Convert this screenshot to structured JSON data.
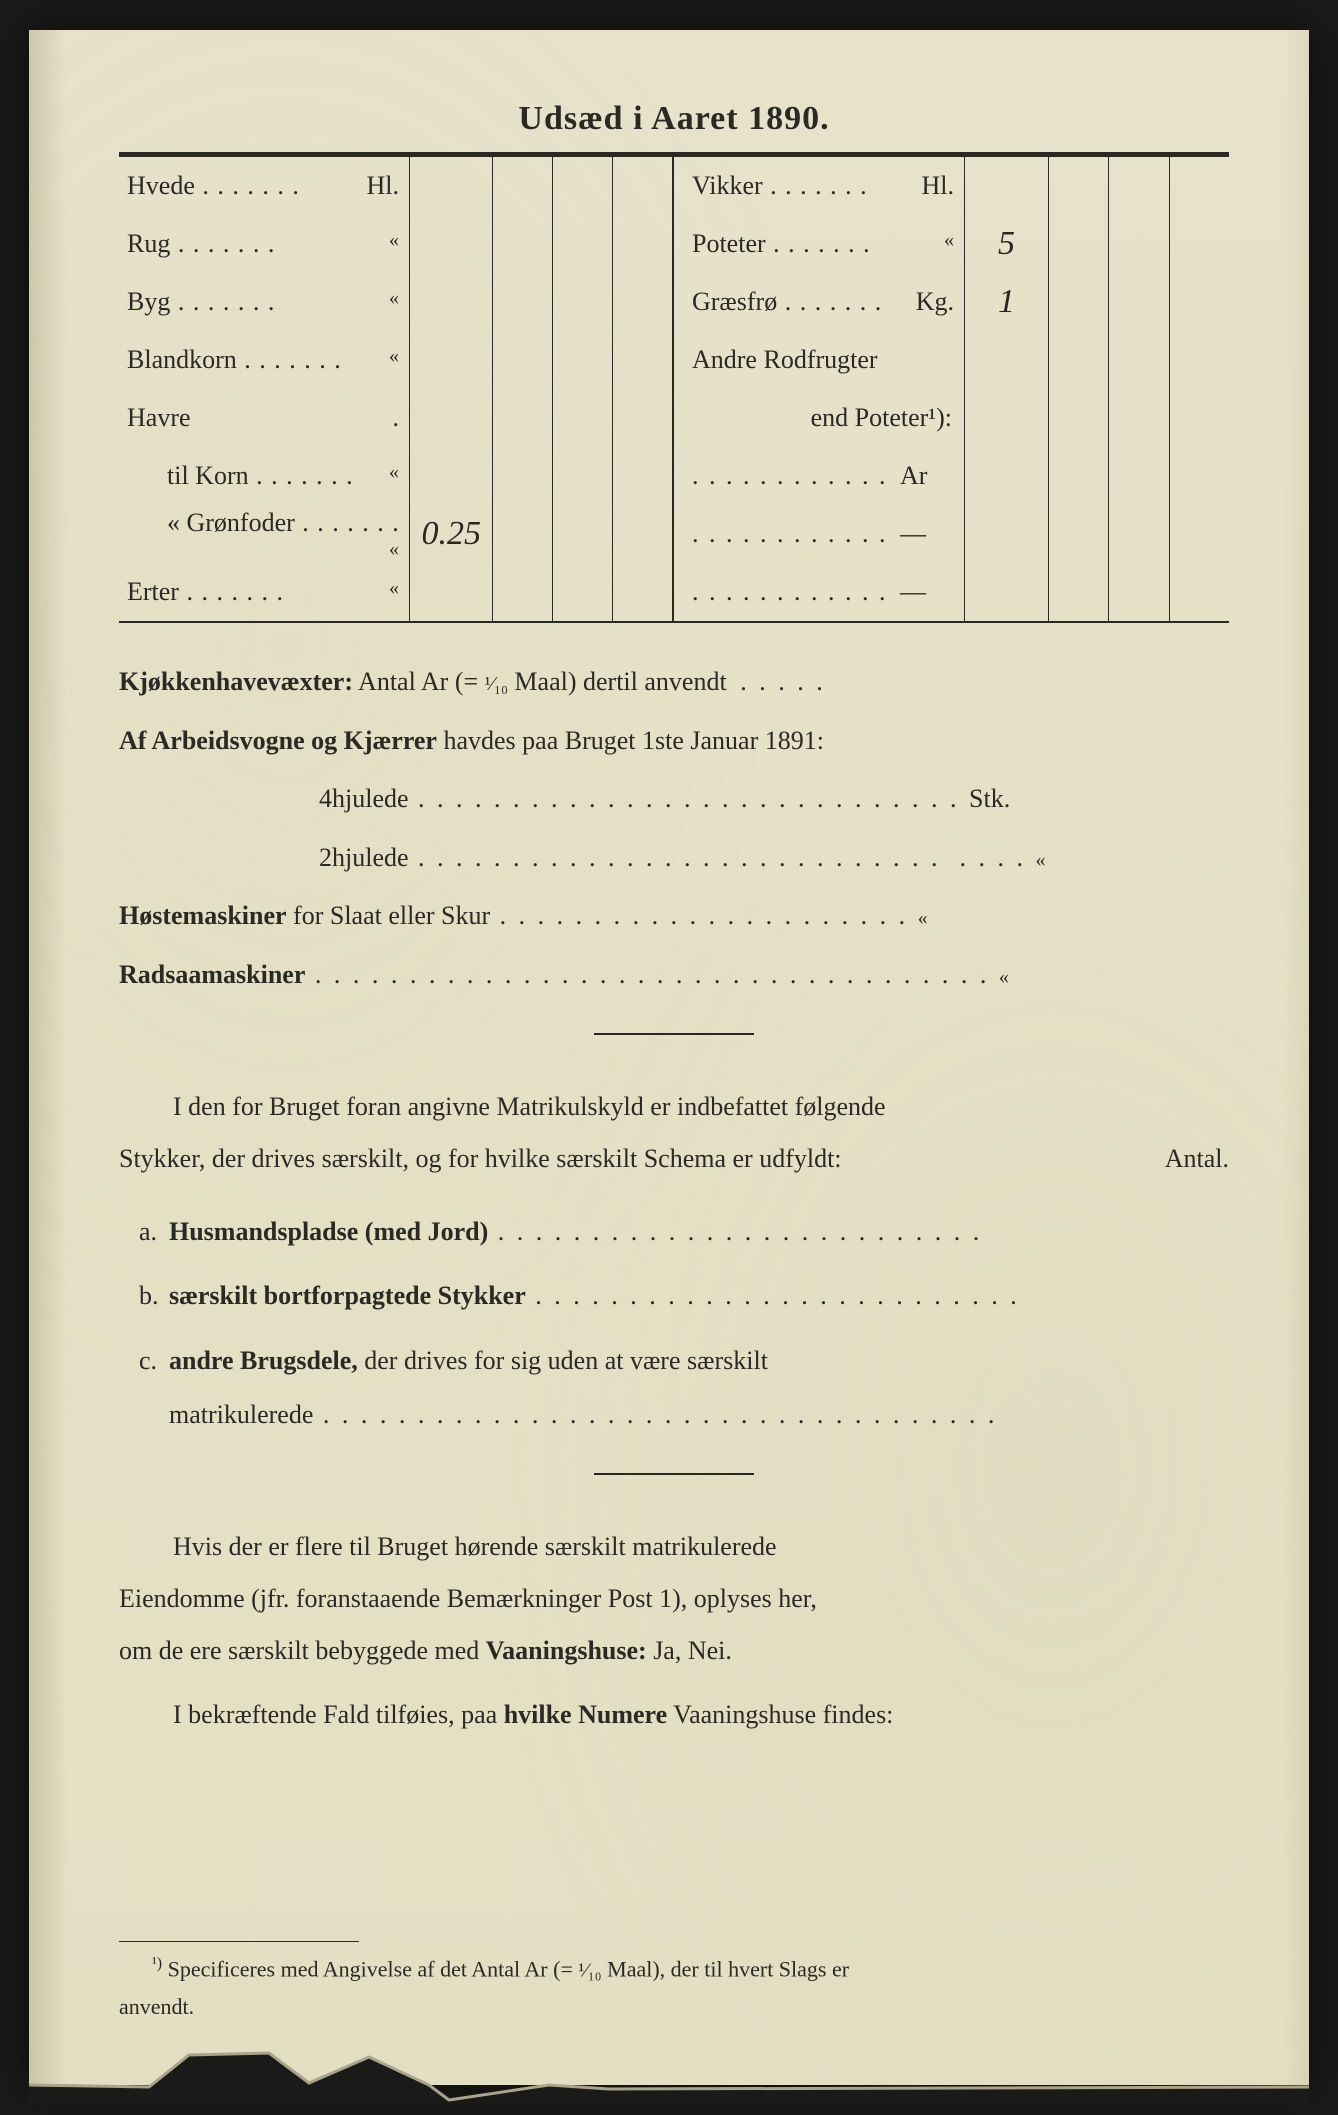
{
  "colors": {
    "paper": "#e8e4cc",
    "ink": "#2a2a25",
    "background": "#1a1a18",
    "handwriting": "#2a2623"
  },
  "title": "Udsæd i Aaret 1890.",
  "leftRows": [
    {
      "label": "Hvede",
      "unit": "Hl.",
      "values": [
        "",
        "",
        "",
        ""
      ]
    },
    {
      "label": "Rug",
      "unit": "«",
      "values": [
        "",
        "",
        "",
        ""
      ]
    },
    {
      "label": "Byg",
      "unit": "«",
      "values": [
        "",
        "",
        "",
        ""
      ]
    },
    {
      "label": "Blandkorn",
      "unit": "«",
      "values": [
        "",
        "",
        "",
        ""
      ]
    },
    {
      "label": "Havre",
      "unit": ".",
      "values": [
        "",
        "",
        "",
        ""
      ],
      "nodots": true
    },
    {
      "label": "til Korn",
      "unit": "«",
      "values": [
        "",
        "",
        "",
        ""
      ],
      "indent": true
    },
    {
      "label": "«   Grønfoder",
      "unit": "«",
      "values": [
        "0.25",
        "",
        "",
        ""
      ],
      "indent": true
    },
    {
      "label": "Erter",
      "unit": "«",
      "values": [
        "",
        "",
        "",
        ""
      ]
    }
  ],
  "rightRows": [
    {
      "label": "Vikker",
      "unit": "Hl.",
      "values": [
        "",
        "",
        "",
        ""
      ]
    },
    {
      "label": "Poteter",
      "unit": "«",
      "values": [
        "5",
        "",
        "",
        ""
      ]
    },
    {
      "label": "Græsfrø",
      "unit": "Kg.",
      "values": [
        "1",
        "",
        "",
        ""
      ]
    },
    {
      "label": "Andre Rodfrugter",
      "unit": "",
      "values": [
        "",
        "",
        "",
        ""
      ],
      "nodots": true
    },
    {
      "label": "end Poteter¹):",
      "unit": "",
      "values": [
        "",
        "",
        "",
        ""
      ],
      "nodots": true,
      "rightAlign": true
    },
    {
      "label": "",
      "unit": "Ar",
      "values": [
        "",
        "",
        "",
        ""
      ],
      "dotsOnly": true
    },
    {
      "label": "",
      "unit": "—",
      "values": [
        "",
        "",
        "",
        ""
      ],
      "dotsOnly": true
    },
    {
      "label": "",
      "unit": "—",
      "values": [
        "",
        "",
        "",
        ""
      ],
      "dotsOnly": true
    }
  ],
  "lines": {
    "kjokken_prefix": "Kjøkkenhavevæxter:",
    "kjokken_text": " Antal Ar (= ",
    "kjokken_frac": "¹⁄₁₀",
    "kjokken_text2": " Maal) dertil anvendt",
    "arbeid_prefix": "Af Arbeidsvogne og Kjærrer",
    "arbeid_text": " havdes paa Bruget 1ste Januar 1891:",
    "fourwheel": "4hjulede",
    "fourwheel_unit": "Stk.",
    "twowheel": "2hjulede",
    "twowheel_unit": "«",
    "hoste_prefix": "Høstemaskiner",
    "hoste_text": " for Slaat eller Skur",
    "hoste_unit": "«",
    "radsaa": "Radsaamaskiner",
    "radsaa_unit": "«"
  },
  "para1_a": "I den for Bruget foran angivne Matrikulskyld er indbefattet følgende",
  "para1_b": "Stykker, der drives særskilt, og for hvilke særskilt Schema er udfyldt:",
  "para1_right": "Antal.",
  "listItems": [
    {
      "letter": "a.",
      "bold": "Husmandspladse (med Jord)",
      "rest": ""
    },
    {
      "letter": "b.",
      "bold": "særskilt bortforpagtede Stykker",
      "rest": ""
    },
    {
      "letter": "c.",
      "bold": "andre Brugsdele,",
      "rest": " der drives for sig uden at være særskilt",
      "line2": "matrikulerede"
    }
  ],
  "para2_a": "Hvis der er flere til Bruget hørende særskilt matrikulerede",
  "para2_b": "Eiendomme (jfr. foranstaaende Bemærkninger Post 1), oplyses her,",
  "para2_c": "om de ere særskilt bebyggede med ",
  "para2_bold": "Vaaningshuse:",
  "para2_d": " Ja, Nei.",
  "para3_a": "I bekræftende Fald tilføies, paa ",
  "para3_bold": "hvilke Numere",
  "para3_b": " Vaaningshuse findes:",
  "footnote_marker": "¹)",
  "footnote_a": " Specificeres med Angivelse af det Antal Ar (= ",
  "footnote_frac": "¹⁄₁₀",
  "footnote_b": " Maal), der til hvert Slags er",
  "footnote_c": "anvendt."
}
